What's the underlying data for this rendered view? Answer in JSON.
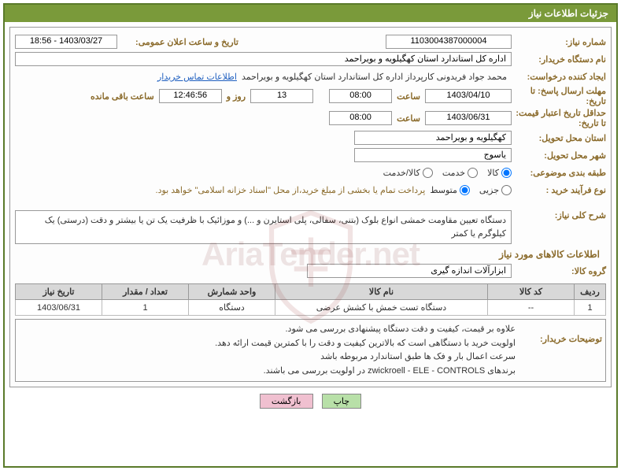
{
  "header": {
    "title": "جزئیات اطلاعات نیاز"
  },
  "need_number": {
    "label": "شماره نیاز:",
    "value": "1103004387000004"
  },
  "announce": {
    "label": "تاریخ و ساعت اعلان عمومی:",
    "value": "1403/03/27 - 18:56"
  },
  "buyer_org": {
    "label": "نام دستگاه خریدار:",
    "value": "اداره کل استاندارد استان کهگیلویه و بویراحمد"
  },
  "requester": {
    "label": "ایجاد کننده درخواست:",
    "value": "محمد جواد  فریدونی کارپرداز اداره کل استاندارد استان کهگیلویه و بویراحمد",
    "link": "اطلاعات تماس خریدار"
  },
  "deadline_reply": {
    "label": "مهلت ارسال پاسخ: تا تاریخ:",
    "date": "1403/04/10",
    "time_label": "ساعت",
    "time": "08:00",
    "days": "13",
    "days_label": "روز و",
    "remaining_time": "12:46:56",
    "remaining_label": "ساعت باقی مانده"
  },
  "price_validity": {
    "label": "حداقل تاریخ اعتبار قیمت: تا تاریخ:",
    "date": "1403/06/31",
    "time_label": "ساعت",
    "time": "08:00"
  },
  "delivery_province": {
    "label": "استان محل تحویل:",
    "value": "کهگیلویه و بویراحمد"
  },
  "delivery_city": {
    "label": "شهر محل تحویل:",
    "value": "یاسوج"
  },
  "subject_class": {
    "label": "طبقه بندی موضوعی:",
    "options": [
      "کالا",
      "خدمت",
      "کالا/خدمت"
    ],
    "selected": 0
  },
  "purchase_type": {
    "label": "نوع فرآیند خرید :",
    "options": [
      "جزیی",
      "متوسط"
    ],
    "selected": 1,
    "note": "پرداخت تمام یا بخشی از مبلغ خرید،از محل \"اسناد خزانه اسلامی\" خواهد بود."
  },
  "general_desc": {
    "label": "شرح کلی نیاز:",
    "text": "دستگاه تعیین مقاومت خمشی انواع بلوک (بتنی، سفالی، پلی استایرن و ...) و موزائیک با ظرفیت یک تن یا بیشتر و دقت (درستی) یک کیلوگرم یا کمتر"
  },
  "goods_info_title": "اطلاعات کالاهای مورد نیاز",
  "goods_group": {
    "label": "گروه کالا:",
    "value": "ابزارآلات اندازه گیری"
  },
  "table": {
    "headers": [
      "ردیف",
      "کد کالا",
      "نام کالا",
      "واحد شمارش",
      "تعداد / مقدار",
      "تاریخ نیاز"
    ],
    "col_widths": [
      "40px",
      "110px",
      "",
      "110px",
      "110px",
      "110px"
    ],
    "rows": [
      [
        "1",
        "--",
        "دستگاه تست خمش با کشش عرضی",
        "دستگاه",
        "1",
        "1403/06/31"
      ]
    ]
  },
  "buyer_notes": {
    "label": "توضیحات خریدار:",
    "lines": [
      "علاوه بر قیمت، کیفیت و دقت دستگاه پیشنهادی بررسی می شود.",
      "اولویت خرید با دستگاهی است که بالاترین کیفیت و دقت را با کمترین قیمت ارائه دهد.",
      "سرعت اعمال بار و فک ها طبق استاندارد مربوطه باشد",
      "برندهای zwickroell - ELE - CONTROLS در اولویت بررسی می باشند."
    ]
  },
  "buttons": {
    "print": "چاپ",
    "back": "بازگشت"
  },
  "watermark_text": "AriaTender.net",
  "styling": {
    "border_color": "#5a7a2a",
    "header_bg": "#7a9a3a",
    "label_color": "#8a6a2a",
    "link_color": "#2060c0",
    "th_bg": "#d8d8d8",
    "btn_green": "#b8e0a8",
    "btn_pink": "#f0c0d0"
  }
}
